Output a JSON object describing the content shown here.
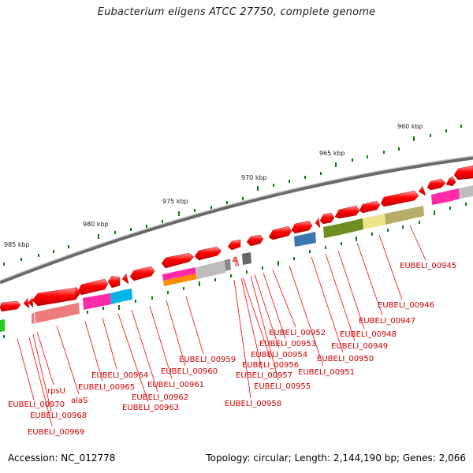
{
  "title": "Eubacterium eligens ATCC 27750, complete genome",
  "accession": "Accession: NC_012778",
  "topology": "Topology: circular; Length: 2,144,190 bp; Genes: 2,066",
  "scale_labels": [
    "960 kbp",
    "965 kbp",
    "970 kbp",
    "975 kbp",
    "980 kbp",
    "985 kbp"
  ],
  "gene_labels": [
    "EUBELI_00945",
    "EUBELI_00946",
    "EUBELI_00947",
    "EUBELI_00948",
    "EUBELI_00949",
    "EUBELI_00950",
    "EUBELI_00951",
    "EUBELI_00952",
    "EUBELI_00953",
    "EUBELI_00954",
    "EUBELI_00955",
    "EUBELI_00956",
    "EUBELI_00957",
    "EUBELI_00958",
    "EUBELI_00959",
    "EUBELI_00960",
    "EUBELI_00961",
    "EUBELI_00962",
    "EUBELI_00963",
    "EUBELI_00964",
    "EUBELI_00965",
    "alaS",
    "rpsU",
    "EUBELI_00968",
    "EUBELI_00969",
    "EUBELI_00970"
  ],
  "colors": {
    "forward_gene": "#ff0000",
    "backbone": "#7a7a7a",
    "tick": "#0a7a0a",
    "label": "#cc0000",
    "cog_magenta": "#ff2aa8",
    "cog_grey": "#bdbdbd",
    "cog_cyan": "#00b4e8",
    "cog_blue": "#3a77b0",
    "cog_olive": "#6f8d1e",
    "cog_khaki": "#b7ad68",
    "cog_lightyellow": "#eee48a",
    "cog_salmon": "#ee7c7c",
    "cog_orange": "#ff8c00",
    "cog_darkgrey": "#666666",
    "cog_green": "#22cc22"
  }
}
